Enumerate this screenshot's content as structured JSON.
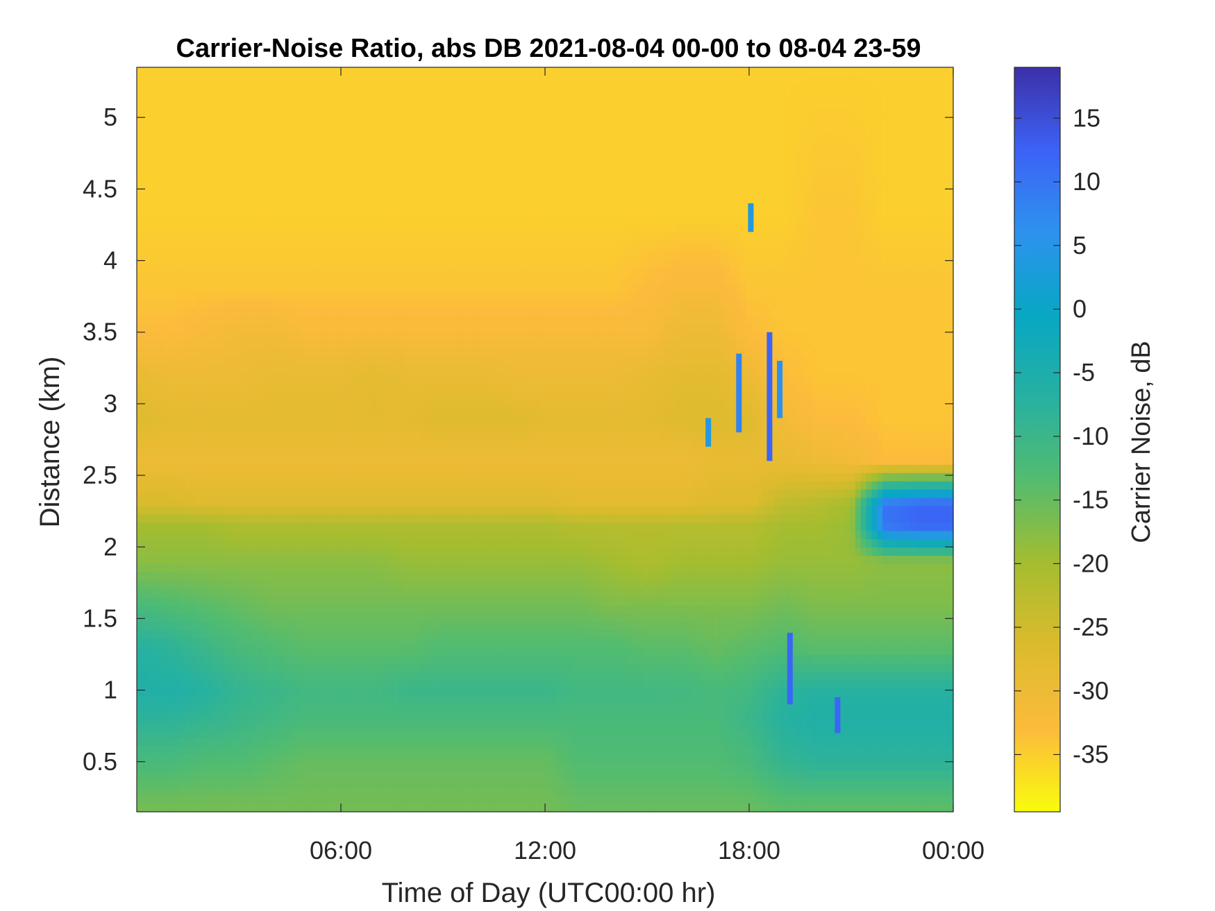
{
  "chart_data": {
    "type": "heatmap",
    "title": "Carrier-Noise Ratio, abs DB 2021-08-04 00-00 to 08-04 23-59",
    "xlabel": "Time of Day (UTC00:00 hr)",
    "ylabel": "Distance (km)",
    "colorbar_label": "Carrier Noise, dB",
    "x_unit": "hours",
    "xlim": [
      0,
      24
    ],
    "ylim": [
      0.15,
      5.35
    ],
    "clim": [
      -39.5,
      19
    ],
    "x_ticks": [
      {
        "value": 6,
        "label": "06:00"
      },
      {
        "value": 12,
        "label": "12:00"
      },
      {
        "value": 18,
        "label": "18:00"
      },
      {
        "value": 24,
        "label": "00:00"
      }
    ],
    "y_ticks": [
      {
        "value": 0.5,
        "label": "0.5"
      },
      {
        "value": 1,
        "label": "1"
      },
      {
        "value": 1.5,
        "label": "1.5"
      },
      {
        "value": 2,
        "label": "2"
      },
      {
        "value": 2.5,
        "label": "2.5"
      },
      {
        "value": 3,
        "label": "3"
      },
      {
        "value": 3.5,
        "label": "3.5"
      },
      {
        "value": 4,
        "label": "4"
      },
      {
        "value": 4.5,
        "label": "4.5"
      },
      {
        "value": 5,
        "label": "5"
      }
    ],
    "colorbar_ticks": [
      {
        "value": 15,
        "label": "15"
      },
      {
        "value": 10,
        "label": "10"
      },
      {
        "value": 5,
        "label": "5"
      },
      {
        "value": 0,
        "label": "0"
      },
      {
        "value": -5,
        "label": "-5"
      },
      {
        "value": -10,
        "label": "-10"
      },
      {
        "value": -15,
        "label": "-15"
      },
      {
        "value": -20,
        "label": "-20"
      },
      {
        "value": -25,
        "label": "-25"
      },
      {
        "value": -30,
        "label": "-30"
      },
      {
        "value": -35,
        "label": "-35"
      }
    ],
    "colormap": "parula (reversed: yellow = low, dark blue = high)",
    "colormap_stops": [
      "#f9fb0e",
      "#fcbb3c",
      "#dcbb2d",
      "#a5bd2f",
      "#54bc6e",
      "#26b1a1",
      "#08a7c4",
      "#2d92ee",
      "#3c62f6",
      "#3c30a8"
    ],
    "grid": false,
    "time_samples_h": [
      0,
      1,
      2,
      3,
      4,
      5,
      6,
      7,
      8,
      9,
      10,
      11,
      12,
      13,
      14,
      15,
      16,
      17,
      18,
      19,
      20,
      21,
      22,
      23,
      24
    ],
    "profiles": [
      {
        "distance_km": 0.2,
        "values_db": [
          -16,
          -16,
          -16,
          -16,
          -16,
          -16,
          -16,
          -16,
          -16,
          -16,
          -16,
          -16,
          -16,
          -15,
          -15,
          -15,
          -15,
          -15,
          -15,
          -14,
          -14,
          -14,
          -14,
          -14,
          -14
        ]
      },
      {
        "distance_km": 0.5,
        "values_db": [
          -12,
          -12,
          -13,
          -13,
          -14,
          -15,
          -15,
          -15,
          -15,
          -15,
          -15,
          -15,
          -15,
          -13,
          -13,
          -13,
          -13,
          -13,
          -12,
          -9,
          -8,
          -8,
          -8,
          -8,
          -8
        ]
      },
      {
        "distance_km": 0.8,
        "values_db": [
          -8,
          -8,
          -9,
          -10,
          -11,
          -12,
          -12,
          -12,
          -12,
          -12,
          -12,
          -12,
          -12,
          -12,
          -12,
          -12,
          -12,
          -12,
          -10,
          -7,
          -6,
          -6,
          -6,
          -6,
          -6
        ]
      },
      {
        "distance_km": 1.0,
        "values_db": [
          -6,
          -6,
          -7,
          -9,
          -10,
          -11,
          -11,
          -11,
          -10,
          -10,
          -10,
          -10,
          -10,
          -11,
          -11,
          -11,
          -11,
          -12,
          -11,
          -8,
          -7,
          -7,
          -7,
          -7,
          -7
        ]
      },
      {
        "distance_km": 1.3,
        "values_db": [
          -7,
          -8,
          -10,
          -12,
          -13,
          -14,
          -14,
          -14,
          -14,
          -13,
          -13,
          -13,
          -13,
          -13,
          -13,
          -14,
          -14,
          -15,
          -14,
          -13,
          -14,
          -14,
          -14,
          -14,
          -14
        ]
      },
      {
        "distance_km": 1.6,
        "values_db": [
          -12,
          -13,
          -14,
          -15,
          -16,
          -16,
          -16,
          -16,
          -16,
          -16,
          -16,
          -16,
          -16,
          -16,
          -17,
          -17,
          -17,
          -17,
          -17,
          -16,
          -17,
          -17,
          -17,
          -17,
          -17
        ]
      },
      {
        "distance_km": 1.9,
        "values_db": [
          -18,
          -18,
          -18,
          -18,
          -18,
          -18,
          -18,
          -18,
          -19,
          -19,
          -19,
          -19,
          -19,
          -19,
          -20,
          -21,
          -20,
          -20,
          -20,
          -19,
          -19,
          -19,
          -18,
          -18,
          -18
        ]
      },
      {
        "distance_km": 2.15,
        "values_db": [
          -20,
          -20,
          -20,
          -21,
          -21,
          -21,
          -21,
          -21,
          -21,
          -21,
          -21,
          -21,
          -21,
          -22,
          -22,
          -22,
          -22,
          -22,
          -22,
          -20,
          -20,
          -19,
          10,
          12,
          12
        ]
      },
      {
        "distance_km": 2.3,
        "values_db": [
          -26,
          -26,
          -27,
          -27,
          -27,
          -27,
          -27,
          -27,
          -27,
          -27,
          -27,
          -27,
          -27,
          -28,
          -28,
          -28,
          -28,
          -27,
          -27,
          -23,
          -22,
          -20,
          10,
          12,
          12
        ]
      },
      {
        "distance_km": 2.6,
        "values_db": [
          -30,
          -30,
          -30,
          -30,
          -30,
          -30,
          -30,
          -30,
          -30,
          -30,
          -30,
          -30,
          -30,
          -30,
          -30,
          -30,
          -30,
          -29,
          -29,
          -29,
          -30,
          -31,
          -33,
          -33,
          -33
        ]
      },
      {
        "distance_km": 2.9,
        "values_db": [
          -27,
          -28,
          -28,
          -28,
          -28,
          -28,
          -28,
          -28,
          -28,
          -27,
          -27,
          -27,
          -28,
          -28,
          -28,
          -28,
          -27,
          -27,
          -27,
          -31,
          -33,
          -33,
          -34,
          -34,
          -34
        ]
      },
      {
        "distance_km": 3.2,
        "values_db": [
          -29,
          -30,
          -30,
          -30,
          -29,
          -29,
          -29,
          -28,
          -29,
          -29,
          -29,
          -30,
          -30,
          -30,
          -30,
          -29,
          -28,
          -28,
          -30,
          -33,
          -34,
          -34,
          -34,
          -34,
          -34
        ]
      },
      {
        "distance_km": 3.5,
        "values_db": [
          -33,
          -33,
          -32,
          -31,
          -31,
          -32,
          -32,
          -32,
          -32,
          -32,
          -32,
          -32,
          -32,
          -32,
          -32,
          -32,
          -30,
          -30,
          -33,
          -34,
          -34,
          -34,
          -34,
          -34,
          -34
        ]
      },
      {
        "distance_km": 3.8,
        "values_db": [
          -34,
          -34,
          -34,
          -34,
          -34,
          -34,
          -34,
          -34,
          -34,
          -34,
          -34,
          -34,
          -34,
          -34,
          -34,
          -33,
          -32,
          -32,
          -34,
          -34,
          -34,
          -34,
          -34,
          -34,
          -34
        ]
      },
      {
        "distance_km": 4.3,
        "values_db": [
          -35,
          -35,
          -35,
          -35,
          -35,
          -35,
          -35,
          -35,
          -35,
          -35,
          -35,
          -35,
          -35,
          -35,
          -35,
          -35,
          -35,
          -35,
          -35,
          -35,
          -34,
          -34,
          -35,
          -35,
          -35
        ]
      },
      {
        "distance_km": 5.3,
        "values_db": [
          -35,
          -35,
          -35,
          -35,
          -35,
          -35,
          -35,
          -35,
          -35,
          -35,
          -35,
          -35,
          -35,
          -35,
          -35,
          -35,
          -35,
          -35,
          -35,
          -35,
          -35,
          -35,
          -35,
          -35,
          -35
        ]
      }
    ],
    "spikes": [
      {
        "time_h": 17.7,
        "distance_range_km": [
          2.8,
          3.35
        ],
        "value_db": 8
      },
      {
        "time_h": 18.6,
        "distance_range_km": [
          2.6,
          3.5
        ],
        "value_db": 12
      },
      {
        "time_h": 18.9,
        "distance_range_km": [
          2.9,
          3.3
        ],
        "value_db": 6
      },
      {
        "time_h": 19.2,
        "distance_range_km": [
          0.9,
          1.4
        ],
        "value_db": 12
      },
      {
        "time_h": 20.6,
        "distance_range_km": [
          0.7,
          0.95
        ],
        "value_db": 12
      },
      {
        "time_h": 16.8,
        "distance_range_km": [
          2.7,
          2.9
        ],
        "value_db": 4
      },
      {
        "time_h": 18.05,
        "distance_range_km": [
          4.2,
          4.4
        ],
        "value_db": 4
      }
    ]
  }
}
